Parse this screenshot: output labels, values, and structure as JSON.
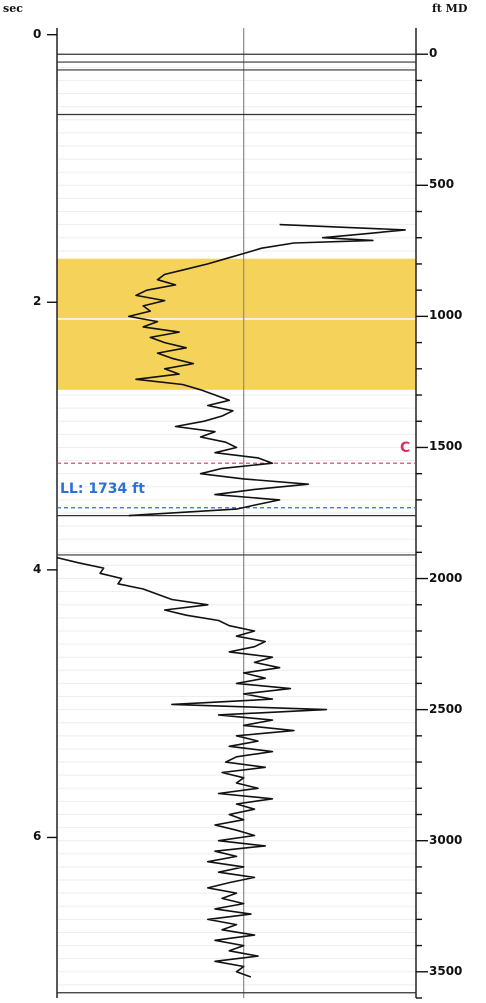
{
  "chart_data": {
    "type": "line",
    "left_axis": {
      "label": "sec",
      "ticks": [
        0,
        2,
        4,
        6
      ],
      "range": [
        -0.05,
        7.2
      ]
    },
    "right_axis": {
      "label": "ft MD",
      "ticks": [
        0,
        500,
        1000,
        1500,
        2000,
        2500,
        3000,
        3500
      ],
      "minor_step": 100,
      "range": [
        -100,
        3600
      ]
    },
    "grid": true,
    "highlight_zone": {
      "top_ft": 780,
      "bottom_ft": 1280,
      "color": "#f5d35a",
      "midline_ft": 1010
    },
    "markers": [
      {
        "label": "C",
        "depth_ft": 1560,
        "color": "#e0305a",
        "style": "dashed"
      },
      {
        "label": "LL: 1734 ft",
        "depth_ft": 1730,
        "color": "#2f6fd8",
        "style": "dashed"
      }
    ],
    "horizontal_lines_ft": [
      0,
      30,
      60,
      230,
      1760,
      1910,
      3580
    ],
    "center_reference_x": 0.52,
    "series": [
      {
        "x_unit": "fraction of track width",
        "depth_ft": [
          650,
          670,
          690,
          700,
          710,
          720,
          740,
          760,
          780,
          800,
          820,
          840,
          860,
          880,
          900,
          920,
          940,
          960,
          980,
          1000,
          1020,
          1040,
          1060,
          1080,
          1100,
          1120,
          1140,
          1160,
          1180,
          1200,
          1220,
          1240,
          1260,
          1280,
          1300,
          1320,
          1340,
          1360,
          1380,
          1400,
          1420,
          1440,
          1460,
          1480,
          1500,
          1520,
          1540,
          1560,
          1580,
          1600,
          1620,
          1640,
          1660,
          1680,
          1700,
          1720,
          1735,
          1760
        ],
        "values": [
          0.62,
          0.97,
          0.82,
          0.74,
          0.88,
          0.66,
          0.57,
          0.52,
          0.47,
          0.42,
          0.36,
          0.3,
          0.28,
          0.33,
          0.25,
          0.22,
          0.3,
          0.24,
          0.26,
          0.2,
          0.28,
          0.24,
          0.34,
          0.26,
          0.3,
          0.36,
          0.28,
          0.32,
          0.38,
          0.3,
          0.34,
          0.22,
          0.35,
          0.4,
          0.44,
          0.48,
          0.42,
          0.49,
          0.46,
          0.41,
          0.33,
          0.44,
          0.4,
          0.47,
          0.5,
          0.44,
          0.56,
          0.6,
          0.46,
          0.4,
          0.52,
          0.7,
          0.55,
          0.44,
          0.62,
          0.55,
          0.5,
          0.2
        ]
      },
      {
        "x_unit": "fraction of track width",
        "depth_ft": [
          1920,
          1940,
          1960,
          1980,
          2000,
          2020,
          2040,
          2060,
          2080,
          2100,
          2120,
          2140,
          2160,
          2180,
          2200,
          2220,
          2240,
          2260,
          2280,
          2300,
          2320,
          2340,
          2360,
          2380,
          2400,
          2420,
          2440,
          2460,
          2480,
          2500,
          2520,
          2540,
          2560,
          2580,
          2600,
          2620,
          2640,
          2660,
          2680,
          2700,
          2720,
          2740,
          2760,
          2780,
          2800,
          2820,
          2840,
          2860,
          2880,
          2900,
          2920,
          2940,
          2960,
          2980,
          3000,
          3020,
          3040,
          3060,
          3080,
          3100,
          3120,
          3140,
          3160,
          3180,
          3200,
          3220,
          3240,
          3260,
          3280,
          3300,
          3320,
          3340,
          3360,
          3380,
          3400,
          3420,
          3440,
          3460,
          3480,
          3500,
          3520
        ],
        "values": [
          0.0,
          0.06,
          0.13,
          0.12,
          0.18,
          0.17,
          0.24,
          0.28,
          0.32,
          0.42,
          0.3,
          0.36,
          0.45,
          0.48,
          0.55,
          0.5,
          0.58,
          0.55,
          0.48,
          0.6,
          0.55,
          0.62,
          0.52,
          0.58,
          0.5,
          0.65,
          0.52,
          0.6,
          0.32,
          0.75,
          0.45,
          0.6,
          0.52,
          0.66,
          0.5,
          0.56,
          0.48,
          0.6,
          0.5,
          0.47,
          0.58,
          0.46,
          0.52,
          0.5,
          0.56,
          0.45,
          0.6,
          0.5,
          0.55,
          0.48,
          0.52,
          0.44,
          0.5,
          0.55,
          0.45,
          0.58,
          0.44,
          0.5,
          0.42,
          0.52,
          0.45,
          0.55,
          0.48,
          0.42,
          0.5,
          0.46,
          0.52,
          0.44,
          0.54,
          0.42,
          0.5,
          0.46,
          0.55,
          0.44,
          0.52,
          0.48,
          0.56,
          0.44,
          0.52,
          0.5,
          0.54
        ]
      }
    ]
  }
}
